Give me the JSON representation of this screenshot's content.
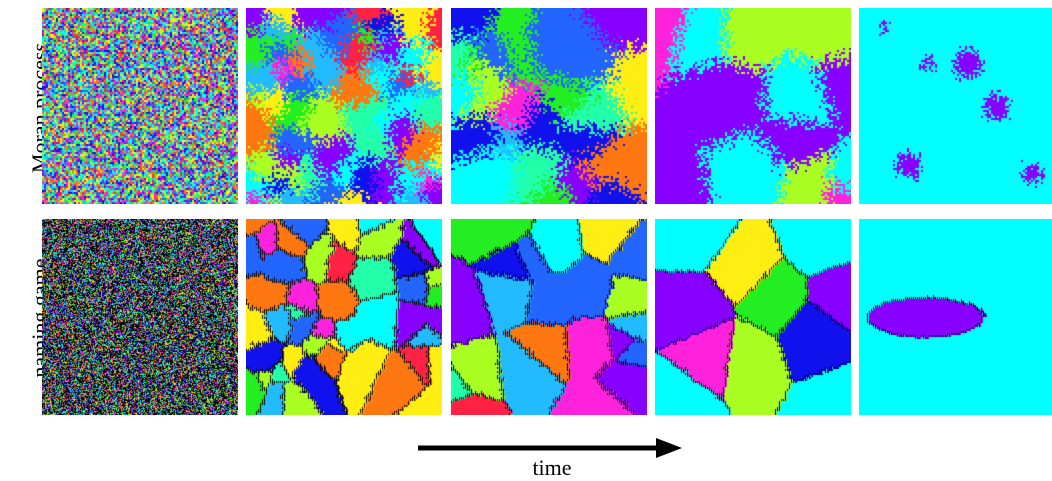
{
  "rows": [
    {
      "label": "Moran process",
      "model": "moran"
    },
    {
      "label": "naming game",
      "model": "naming"
    }
  ],
  "columns": [
    "t0",
    "t1",
    "t2",
    "t3",
    "t4"
  ],
  "axis": {
    "label": "time"
  },
  "palette": [
    "#00ffff",
    "#8800ff",
    "#ff22dd",
    "#22ee22",
    "#aaff22",
    "#1111ee",
    "#ff7711",
    "#ffee11",
    "#ff2244",
    "#22bbff",
    "#2266ff",
    "#22ffaa"
  ],
  "colors": {
    "background": "#ffffff",
    "arrow": "#000000",
    "naming_boundary": "#000000"
  }
}
